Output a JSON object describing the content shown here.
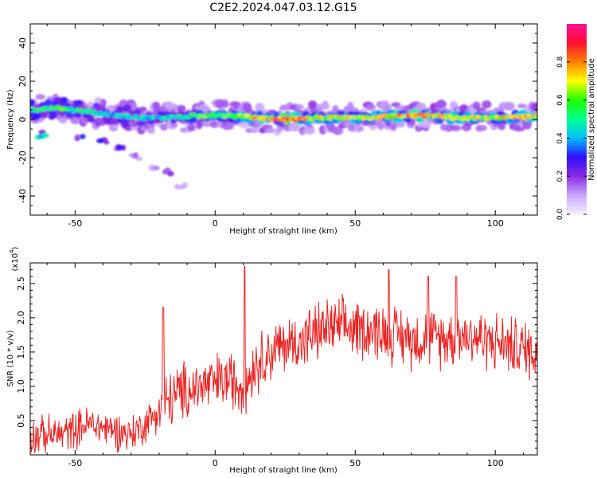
{
  "title": "C2E2.2024.047.03.12.G15",
  "chart_data": [
    {
      "type": "heatmap",
      "xlabel": "Height of straight line (km)",
      "ylabel": "Frequency (Hz)",
      "xlim": [
        -66,
        115
      ],
      "ylim": [
        -50,
        50
      ],
      "xticks": [
        -50,
        0,
        50,
        100
      ],
      "yticks": [
        40,
        20,
        0,
        -20,
        -40
      ],
      "colorbar": {
        "label": "Normalized spectral amplitude",
        "range": [
          0.0,
          1.0
        ],
        "ticks": [
          0.0,
          0.2,
          0.4,
          0.6,
          0.8
        ],
        "tick_labels": [
          "0.0",
          "0.2",
          "0.4",
          "0.6",
          "0.8"
        ],
        "colors": [
          "#f4f0ff",
          "#c9a6ff",
          "#8a2be2",
          "#3010ff",
          "#00bfff",
          "#00ff90",
          "#20ff00",
          "#ffff00",
          "#ff8000",
          "#ff1030",
          "#ff1090"
        ]
      },
      "main_band": {
        "description_values": "strong narrow band around 0-2 Hz across the full height range",
        "x": [
          -64,
          -55,
          -45,
          -35,
          -25,
          -15,
          -5,
          5,
          15,
          25,
          35,
          45,
          55,
          65,
          75,
          85,
          95,
          105,
          115
        ],
        "freq_center": [
          5,
          6,
          4,
          2,
          1,
          1,
          2,
          2,
          1,
          0,
          1,
          1,
          1,
          2,
          2,
          1,
          1,
          1,
          2
        ],
        "amplitude": [
          0.55,
          0.6,
          0.5,
          0.45,
          0.45,
          0.5,
          0.6,
          0.65,
          0.75,
          0.95,
          0.75,
          0.7,
          0.7,
          0.8,
          0.85,
          0.75,
          0.7,
          0.75,
          0.8
        ]
      },
      "diagonal_trace": {
        "x": [
          -62,
          -48,
          -40,
          -35,
          -33,
          -28,
          -22,
          -17,
          -12
        ],
        "freq": [
          -8,
          -10,
          -12,
          -14,
          -16,
          -20,
          -24,
          -27,
          -35
        ],
        "amplitude": [
          0.45,
          0.3,
          0.35,
          0.25,
          0.35,
          0.15,
          0.12,
          0.2,
          0.1
        ]
      }
    },
    {
      "type": "line",
      "xlabel": "Height of straight line (km)",
      "ylabel": "SNR (10 * v/v)",
      "multiplier_label": "(x10",
      "multiplier_exp": "4",
      "multiplier_close": ")",
      "xlim": [
        -66,
        115
      ],
      "ylim": [
        0,
        2.8
      ],
      "xticks": [
        -50,
        0,
        50,
        100
      ],
      "yticks": [
        0.5,
        1.0,
        1.5,
        2.0,
        2.5
      ],
      "ytick_labels": [
        "0.5",
        "1.0",
        "1.5",
        "2.0",
        "2.5"
      ],
      "color": "#ee2222",
      "trend_x": [
        -66,
        -55,
        -45,
        -35,
        -30,
        -25,
        -20,
        -15,
        -10,
        -5,
        0,
        5,
        10,
        15,
        20,
        25,
        30,
        35,
        40,
        50,
        60,
        70,
        80,
        90,
        100,
        110,
        115
      ],
      "trend_y": [
        0.28,
        0.3,
        0.45,
        0.35,
        0.3,
        0.45,
        0.65,
        0.85,
        0.95,
        1.0,
        1.05,
        1.1,
        1.0,
        1.35,
        1.5,
        1.6,
        1.65,
        1.75,
        1.85,
        1.85,
        1.8,
        1.7,
        1.7,
        1.75,
        1.65,
        1.55,
        1.5
      ],
      "noise_amplitude": 0.35,
      "peaks": [
        {
          "x": -18.5,
          "y": 2.15
        },
        {
          "x": 10.5,
          "y": 2.75
        },
        {
          "x": 62,
          "y": 2.7
        },
        {
          "x": 76,
          "y": 2.6
        },
        {
          "x": 86,
          "y": 2.6
        }
      ]
    }
  ]
}
